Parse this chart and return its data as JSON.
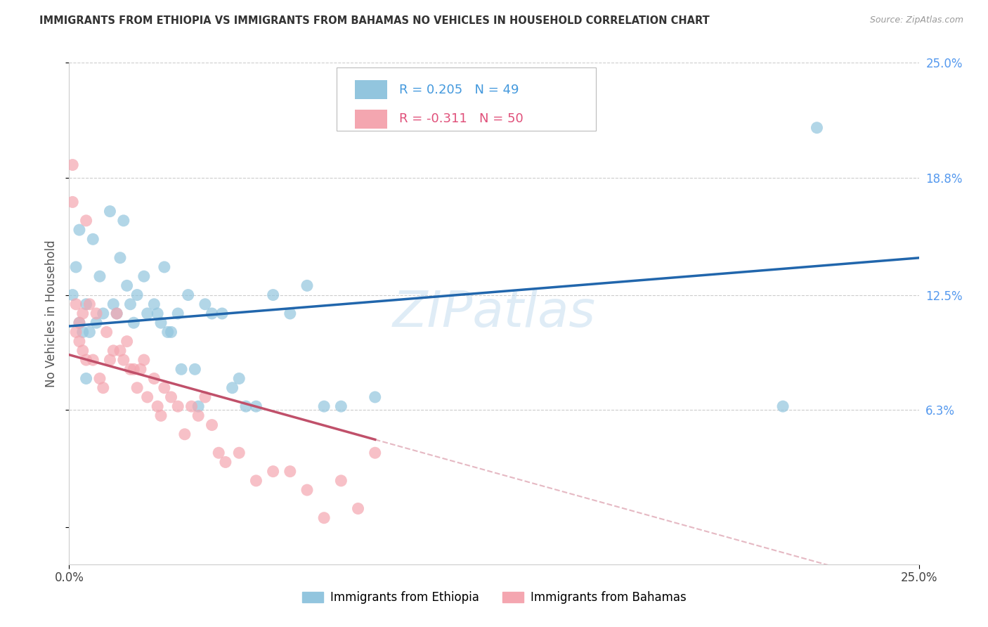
{
  "title": "IMMIGRANTS FROM ETHIOPIA VS IMMIGRANTS FROM BAHAMAS NO VEHICLES IN HOUSEHOLD CORRELATION CHART",
  "source": "Source: ZipAtlas.com",
  "ylabel": "No Vehicles in Household",
  "xmin": 0.0,
  "xmax": 0.25,
  "ymin": -0.02,
  "ymax": 0.25,
  "ytick_values": [
    0.0,
    0.063,
    0.125,
    0.188,
    0.25
  ],
  "right_ytick_labels": [
    "6.3%",
    "12.5%",
    "18.8%",
    "25.0%"
  ],
  "right_ytick_values": [
    0.063,
    0.125,
    0.188,
    0.25
  ],
  "legend_label1": "Immigrants from Ethiopia",
  "legend_label2": "Immigrants from Bahamas",
  "watermark": "ZIPatlas",
  "ethiopia_color": "#92c5de",
  "bahamas_color": "#f4a6b0",
  "ethiopia_line_color": "#2166ac",
  "bahamas_line_color": "#c0506a",
  "ethiopia_R": 0.205,
  "ethiopia_N": 49,
  "bahamas_R": -0.311,
  "bahamas_N": 50,
  "ethiopia_scatter_x": [
    0.001,
    0.002,
    0.003,
    0.003,
    0.004,
    0.005,
    0.005,
    0.006,
    0.007,
    0.008,
    0.009,
    0.01,
    0.012,
    0.013,
    0.014,
    0.015,
    0.016,
    0.017,
    0.018,
    0.019,
    0.02,
    0.022,
    0.023,
    0.025,
    0.026,
    0.027,
    0.028,
    0.029,
    0.03,
    0.032,
    0.033,
    0.035,
    0.037,
    0.038,
    0.04,
    0.042,
    0.045,
    0.048,
    0.05,
    0.052,
    0.055,
    0.06,
    0.065,
    0.07,
    0.075,
    0.08,
    0.09,
    0.21,
    0.22
  ],
  "ethiopia_scatter_y": [
    0.125,
    0.14,
    0.11,
    0.16,
    0.105,
    0.12,
    0.08,
    0.105,
    0.155,
    0.11,
    0.135,
    0.115,
    0.17,
    0.12,
    0.115,
    0.145,
    0.165,
    0.13,
    0.12,
    0.11,
    0.125,
    0.135,
    0.115,
    0.12,
    0.115,
    0.11,
    0.14,
    0.105,
    0.105,
    0.115,
    0.085,
    0.125,
    0.085,
    0.065,
    0.12,
    0.115,
    0.115,
    0.075,
    0.08,
    0.065,
    0.065,
    0.125,
    0.115,
    0.13,
    0.065,
    0.065,
    0.07,
    0.065,
    0.215
  ],
  "bahamas_scatter_x": [
    0.001,
    0.001,
    0.002,
    0.002,
    0.003,
    0.003,
    0.004,
    0.004,
    0.005,
    0.005,
    0.006,
    0.007,
    0.008,
    0.009,
    0.01,
    0.011,
    0.012,
    0.013,
    0.014,
    0.015,
    0.016,
    0.017,
    0.018,
    0.019,
    0.02,
    0.021,
    0.022,
    0.023,
    0.025,
    0.026,
    0.027,
    0.028,
    0.03,
    0.032,
    0.034,
    0.036,
    0.038,
    0.04,
    0.042,
    0.044,
    0.046,
    0.05,
    0.055,
    0.06,
    0.065,
    0.07,
    0.075,
    0.08,
    0.085,
    0.09
  ],
  "bahamas_scatter_y": [
    0.195,
    0.175,
    0.12,
    0.105,
    0.11,
    0.1,
    0.115,
    0.095,
    0.09,
    0.165,
    0.12,
    0.09,
    0.115,
    0.08,
    0.075,
    0.105,
    0.09,
    0.095,
    0.115,
    0.095,
    0.09,
    0.1,
    0.085,
    0.085,
    0.075,
    0.085,
    0.09,
    0.07,
    0.08,
    0.065,
    0.06,
    0.075,
    0.07,
    0.065,
    0.05,
    0.065,
    0.06,
    0.07,
    0.055,
    0.04,
    0.035,
    0.04,
    0.025,
    0.03,
    0.03,
    0.02,
    0.005,
    0.025,
    0.01,
    0.04
  ]
}
